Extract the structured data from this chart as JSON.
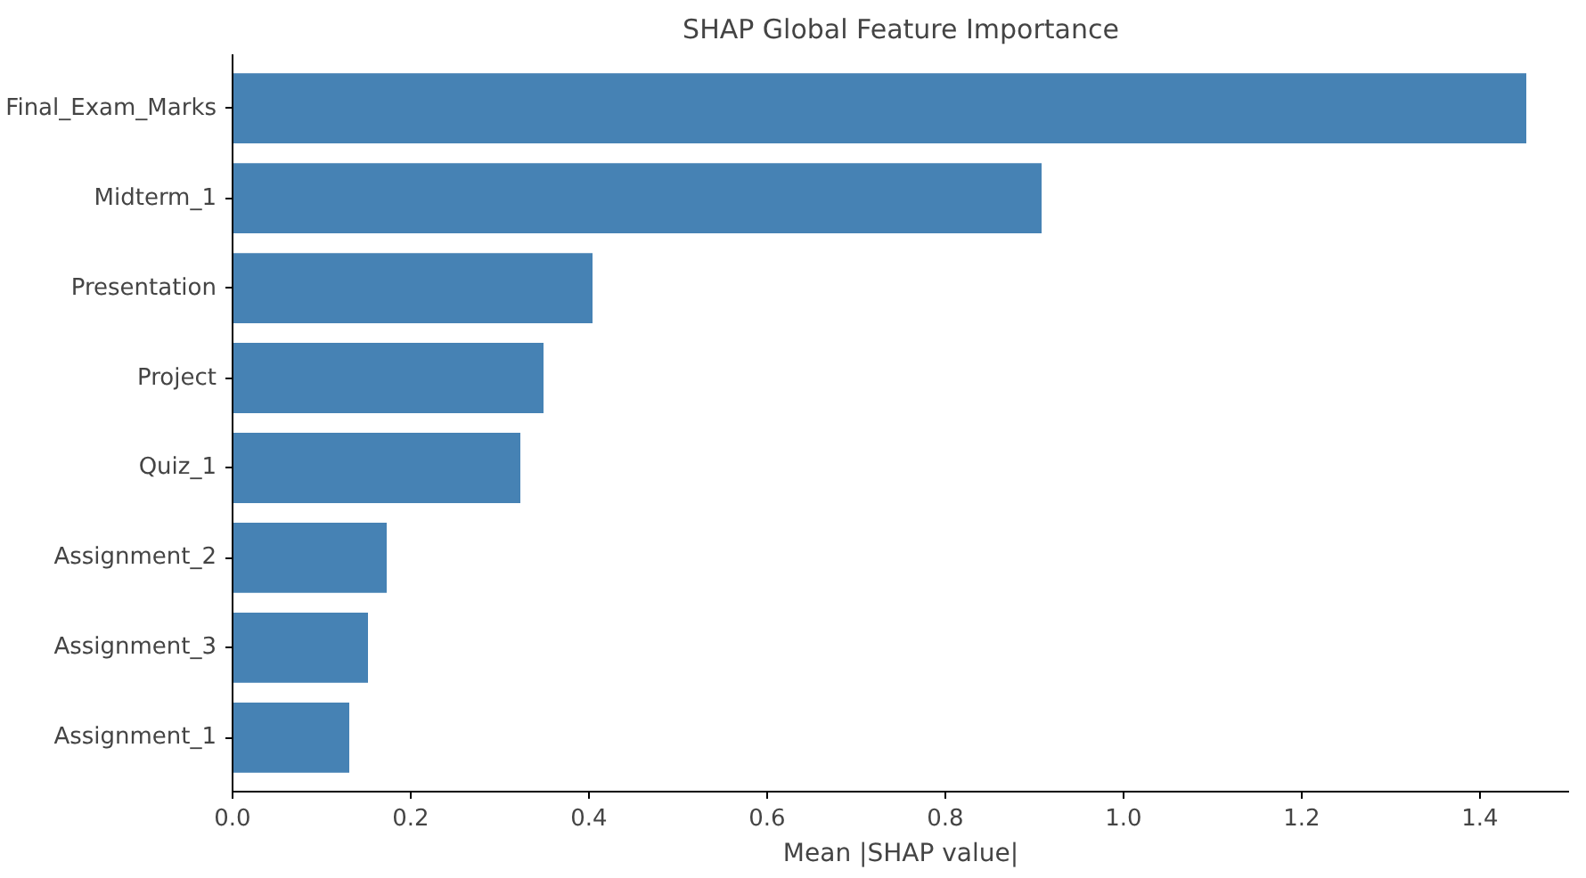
{
  "chart_data": {
    "type": "bar",
    "orientation": "horizontal",
    "title": "SHAP Global Feature Importance",
    "xlabel": "Mean |SHAP value|",
    "categories": [
      "Final_Exam_Marks",
      "Midterm_1",
      "Presentation",
      "Project",
      "Quiz_1",
      "Assignment_2",
      "Assignment_3",
      "Assignment_1"
    ],
    "values": [
      1.453,
      0.909,
      0.405,
      0.35,
      0.324,
      0.174,
      0.153,
      0.132
    ],
    "color": "#4682b4",
    "xlim": [
      0,
      1.5
    ],
    "xticks": [
      {
        "value": 0,
        "label": "0.0"
      },
      0.2,
      0.4,
      0.6,
      0.8,
      {
        "value": 1,
        "label": "1.0"
      },
      1.2,
      1.4
    ],
    "grid": false
  }
}
